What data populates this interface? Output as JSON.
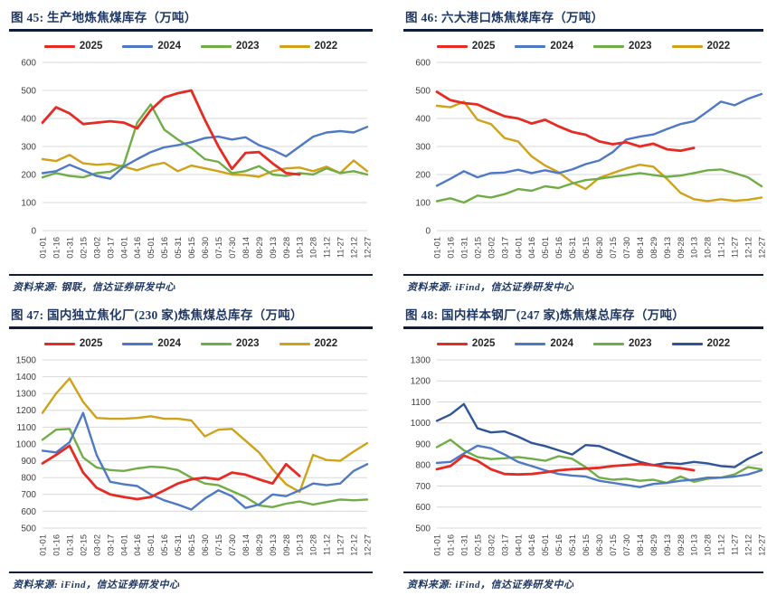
{
  "x_axis_labels": [
    "01-01",
    "01-16",
    "01-31",
    "02-15",
    "03-02",
    "03-17",
    "04-01",
    "04-16",
    "05-01",
    "05-16",
    "05-31",
    "06-15",
    "06-30",
    "07-15",
    "07-30",
    "08-14",
    "08-29",
    "09-13",
    "09-28",
    "10-13",
    "10-28",
    "11-12",
    "11-27",
    "12-12",
    "12-27"
  ],
  "chart_data": [
    {
      "id": "figure-45",
      "type": "line",
      "title": "图 45: 生产地炼焦煤库存（万吨）",
      "source": "资料来源: 钢联，信达证券研发中心",
      "ylim": [
        0,
        600
      ],
      "ytick_step": 100,
      "grid": true,
      "legend_position": "top",
      "series": [
        {
          "name": "2025",
          "color": "#e52b24",
          "values": [
            385,
            440,
            418,
            380,
            385,
            390,
            385,
            365,
            430,
            475,
            490,
            500,
            395,
            300,
            220,
            277,
            280,
            240,
            205,
            200,
            null,
            null,
            null,
            null,
            null
          ]
        },
        {
          "name": "2024",
          "color": "#4e79c4",
          "values": [
            205,
            212,
            235,
            215,
            195,
            185,
            228,
            255,
            280,
            297,
            305,
            315,
            330,
            335,
            325,
            333,
            305,
            288,
            265,
            300,
            335,
            350,
            355,
            350,
            370
          ]
        },
        {
          "name": "2023",
          "color": "#70ad47",
          "values": [
            190,
            205,
            195,
            190,
            205,
            210,
            235,
            385,
            450,
            360,
            325,
            295,
            255,
            245,
            205,
            212,
            230,
            200,
            195,
            205,
            200,
            222,
            205,
            212,
            200
          ]
        },
        {
          "name": "2022",
          "color": "#d0a21a",
          "values": [
            255,
            248,
            270,
            240,
            235,
            238,
            228,
            215,
            232,
            242,
            212,
            232,
            222,
            212,
            200,
            198,
            192,
            212,
            222,
            225,
            212,
            228,
            205,
            250,
            212
          ]
        }
      ]
    },
    {
      "id": "figure-46",
      "type": "line",
      "title": "图 46: 六大港口炼焦煤库存（万吨）",
      "source": "资料来源: iFind，信达证券研发中心",
      "ylim": [
        0,
        600
      ],
      "ytick_step": 100,
      "grid": true,
      "legend_position": "top",
      "series": [
        {
          "name": "2025",
          "color": "#e52b24",
          "values": [
            495,
            465,
            455,
            450,
            428,
            408,
            400,
            382,
            395,
            372,
            352,
            342,
            318,
            308,
            315,
            300,
            310,
            290,
            285,
            295,
            null,
            null,
            null,
            null,
            null
          ]
        },
        {
          "name": "2024",
          "color": "#4e79c4",
          "values": [
            160,
            185,
            212,
            190,
            205,
            207,
            217,
            205,
            215,
            205,
            218,
            237,
            250,
            280,
            325,
            335,
            343,
            362,
            380,
            390,
            425,
            460,
            447,
            470,
            487
          ]
        },
        {
          "name": "2023",
          "color": "#70ad47",
          "values": [
            105,
            115,
            100,
            125,
            118,
            130,
            148,
            142,
            158,
            152,
            168,
            180,
            185,
            192,
            198,
            205,
            198,
            192,
            196,
            205,
            215,
            218,
            205,
            190,
            158
          ]
        },
        {
          "name": "2022",
          "color": "#d0a21a",
          "values": [
            445,
            440,
            460,
            395,
            380,
            330,
            318,
            265,
            232,
            208,
            172,
            148,
            188,
            205,
            222,
            235,
            228,
            185,
            135,
            112,
            105,
            112,
            106,
            110,
            118
          ]
        }
      ]
    },
    {
      "id": "figure-47",
      "type": "line",
      "title": "图 47: 国内独立焦化厂(230 家)炼焦煤总库存（万吨）",
      "source": "资料来源: iFind，信达证券研发中心",
      "ylim": [
        500,
        1500
      ],
      "ytick_step": 100,
      "grid": true,
      "legend_position": "top",
      "series": [
        {
          "name": "2025",
          "color": "#e52b24",
          "values": [
            885,
            935,
            990,
            830,
            740,
            700,
            685,
            672,
            685,
            725,
            765,
            790,
            800,
            790,
            830,
            818,
            790,
            765,
            880,
            810,
            null,
            null,
            null,
            null,
            null
          ]
        },
        {
          "name": "2024",
          "color": "#4e79c4",
          "values": [
            960,
            950,
            1010,
            1185,
            935,
            775,
            760,
            750,
            700,
            665,
            640,
            610,
            675,
            725,
            690,
            620,
            640,
            700,
            690,
            725,
            765,
            755,
            765,
            840,
            880
          ]
        },
        {
          "name": "2023",
          "color": "#70ad47",
          "values": [
            1025,
            1085,
            1090,
            920,
            860,
            845,
            840,
            855,
            865,
            860,
            845,
            800,
            765,
            755,
            720,
            685,
            635,
            625,
            645,
            658,
            640,
            655,
            670,
            665,
            670
          ]
        },
        {
          "name": "2022",
          "color": "#d0a21a",
          "values": [
            1185,
            1300,
            1390,
            1250,
            1155,
            1150,
            1150,
            1155,
            1165,
            1150,
            1150,
            1140,
            1045,
            1085,
            1090,
            1020,
            950,
            850,
            760,
            715,
            935,
            905,
            900,
            955,
            1005
          ]
        }
      ]
    },
    {
      "id": "figure-48",
      "type": "line",
      "title": "图 48: 国内样本钢厂(247 家)炼焦煤总库存（万吨）",
      "source": "资料来源: iFind，信达证券研发中心",
      "ylim": [
        500,
        1300
      ],
      "ytick_step": 100,
      "grid": true,
      "legend_position": "top",
      "series": [
        {
          "name": "2025",
          "color": "#e52b24",
          "values": [
            780,
            795,
            845,
            820,
            780,
            757,
            755,
            757,
            765,
            775,
            780,
            783,
            787,
            795,
            800,
            805,
            800,
            790,
            785,
            775,
            null,
            null,
            null,
            null,
            null
          ]
        },
        {
          "name": "2024",
          "color": "#4e79c4",
          "values": [
            810,
            815,
            855,
            892,
            880,
            850,
            815,
            795,
            775,
            757,
            750,
            745,
            725,
            715,
            705,
            695,
            710,
            715,
            725,
            730,
            740,
            740,
            745,
            755,
            775
          ]
        },
        {
          "name": "2023",
          "color": "#70ad47",
          "values": [
            885,
            920,
            870,
            838,
            828,
            832,
            838,
            830,
            820,
            842,
            830,
            790,
            740,
            730,
            735,
            725,
            730,
            715,
            745,
            720,
            735,
            740,
            755,
            790,
            780
          ]
        },
        {
          "name": "2022",
          "color": "#2f5597",
          "values": [
            1010,
            1040,
            1090,
            975,
            955,
            960,
            935,
            905,
            890,
            870,
            850,
            895,
            890,
            865,
            840,
            815,
            800,
            810,
            805,
            815,
            808,
            795,
            790,
            830,
            860
          ]
        }
      ]
    }
  ]
}
